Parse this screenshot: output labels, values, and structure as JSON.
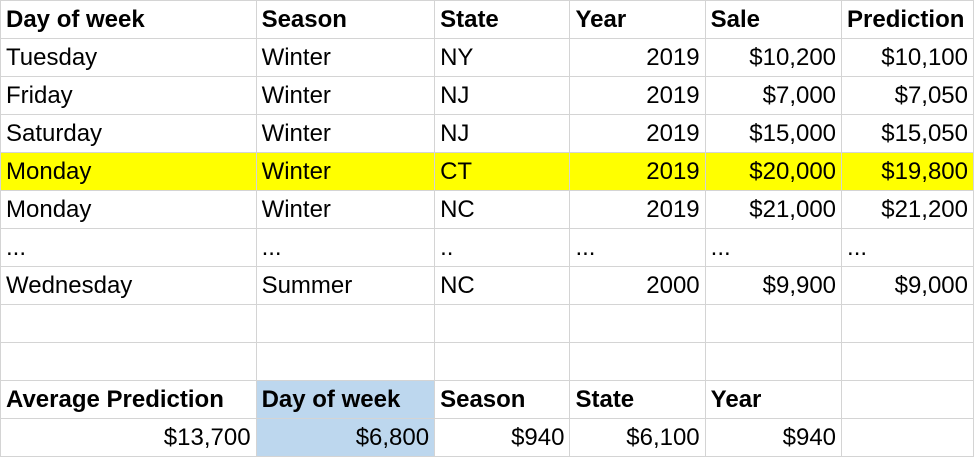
{
  "columns": [
    "Day of week",
    "Season",
    "State",
    "Year",
    "Sale",
    "Prediction"
  ],
  "rows": [
    [
      "Tuesday",
      "Winter",
      "NY",
      "2019",
      "$10,200",
      "$10,100"
    ],
    [
      "Friday",
      "Winter",
      "NJ",
      "2019",
      "$7,000",
      "$7,050"
    ],
    [
      "Saturday",
      "Winter",
      "NJ",
      "2019",
      "$15,000",
      "$15,050"
    ],
    [
      "Monday",
      "Winter",
      "CT",
      "2019",
      "$20,000",
      "$19,800"
    ],
    [
      "Monday",
      "Winter",
      "NC",
      "2019",
      "$21,000",
      "$21,200"
    ],
    [
      "...",
      "...",
      "..",
      "...",
      "...",
      "..."
    ],
    [
      "Wednesday",
      "Summer",
      "NC",
      "2000",
      "$9,900",
      "$9,000"
    ]
  ],
  "highlighted_row_color": "#ffff00",
  "summary": {
    "headers": [
      "Average Prediction",
      "Day of week",
      "Season",
      "State",
      "Year"
    ],
    "values": [
      "$13,700",
      "$6,800",
      "$940",
      "$6,100",
      "$940"
    ],
    "highlight_color": "#bdd7ee"
  }
}
